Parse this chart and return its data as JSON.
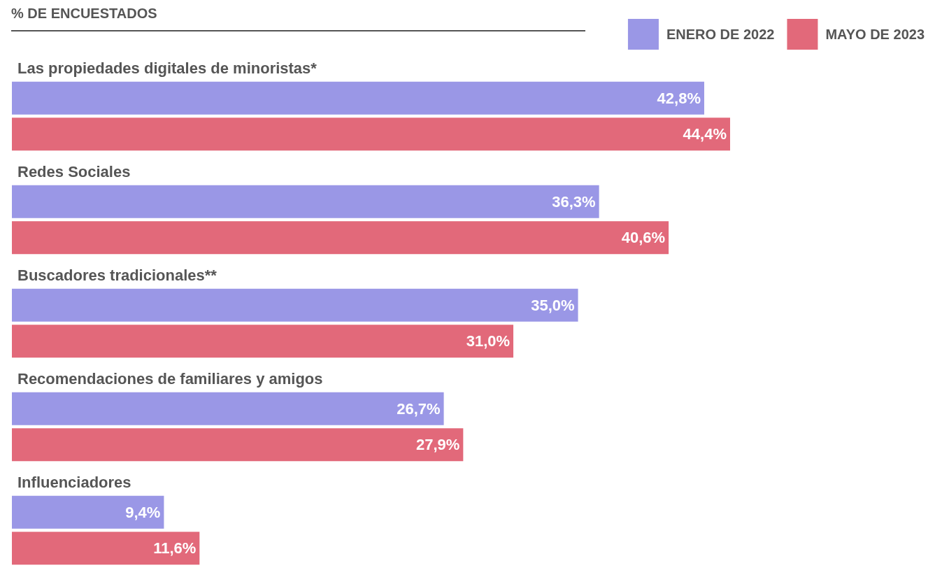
{
  "chart_data": {
    "type": "bar",
    "orientation": "horizontal",
    "title": "% DE ENCUESTADOS",
    "categories": [
      "Las propiedades digitales de minoristas*",
      "Redes Sociales",
      "Buscadores tradicionales**",
      "Recomendaciones de familiares y amigos",
      "Influenciadores"
    ],
    "series": [
      {
        "name": "ENERO DE 2022",
        "color": "#9a97e6",
        "values": [
          42.8,
          36.3,
          35.0,
          26.7,
          9.4
        ],
        "value_labels": [
          "42,8%",
          "36,3%",
          "35,0%",
          "26,7%",
          "9,4%"
        ]
      },
      {
        "name": "MAYO DE 2023",
        "color": "#e2697a",
        "values": [
          44.4,
          40.6,
          31.0,
          27.9,
          11.6
        ],
        "value_labels": [
          "44,4%",
          "40,6%",
          "31,0%",
          "27,9%",
          "11,6%"
        ]
      }
    ],
    "legend": "top right"
  }
}
